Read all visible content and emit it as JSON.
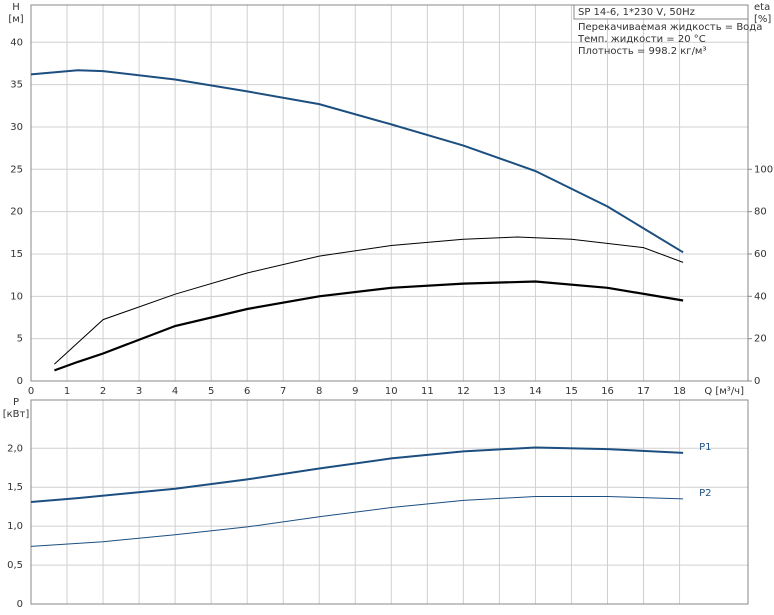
{
  "chart_data": [
    {
      "type": "line",
      "title": "SP 14-6, 1*230 V, 50Hz",
      "annotations": [
        "Перекачиваемая жидкость = Вода",
        "Темп. жидкости = 20 °C",
        "Плотность = 998.2 кг/м³"
      ],
      "ylabel": "H",
      "yunit": "[м]",
      "y2label": "eta",
      "y2unit": "[%]",
      "xlabel": "Q [м³/ч]",
      "xlim": [
        0,
        19.9
      ],
      "xticks": [
        0,
        1,
        2,
        3,
        4,
        5,
        6,
        7,
        8,
        9,
        10,
        11,
        12,
        13,
        14,
        15,
        16,
        17,
        18
      ],
      "ylim": [
        0,
        44.4
      ],
      "yticks": [
        0,
        5,
        10,
        15,
        20,
        25,
        30,
        35,
        40
      ],
      "y2lim": [
        0,
        177.6
      ],
      "y2ticks": [
        0,
        20,
        40,
        60,
        80,
        100
      ],
      "grid": true,
      "series": [
        {
          "color": "#1c4f80",
          "width": 2,
          "x": [
            0,
            1.3,
            2,
            4,
            6,
            8,
            10,
            12,
            14,
            16,
            18.1
          ],
          "values": [
            36.2,
            36.7,
            36.6,
            35.6,
            34.2,
            32.7,
            30.3,
            27.8,
            24.8,
            20.6,
            15.2
          ]
        },
        {
          "color": "#000000",
          "width": 1,
          "axis": "y2",
          "x": [
            0.65,
            2,
            4,
            6,
            8,
            10,
            12,
            13.5,
            15,
            17,
            18.1
          ],
          "values": [
            8,
            29,
            41,
            51,
            59,
            64,
            67,
            68,
            67,
            63,
            56
          ]
        },
        {
          "color": "#000000",
          "width": 2.2,
          "axis": "y2",
          "x": [
            0.65,
            1.3,
            2,
            4,
            6,
            8,
            10,
            12,
            14,
            16,
            18.1
          ],
          "values": [
            5,
            9,
            13,
            26,
            34,
            40,
            44,
            46,
            47,
            44,
            38
          ]
        }
      ]
    },
    {
      "type": "line",
      "ylabel": "P",
      "yunit": "[кВт]",
      "xlim": [
        0,
        19.9
      ],
      "xticks": [
        0,
        1,
        2,
        3,
        4,
        5,
        6,
        7,
        8,
        9,
        10,
        11,
        12,
        13,
        14,
        15,
        16,
        17,
        18
      ],
      "ylim": [
        0,
        2.62
      ],
      "yticks": [
        0,
        {
          "value": 0.5,
          "label": "0,5"
        },
        {
          "value": 1,
          "label": "1,0"
        },
        {
          "value": 1.5,
          "label": "1,5"
        },
        {
          "value": 2,
          "label": "2,0"
        }
      ],
      "grid": true,
      "series": [
        {
          "name": "P1",
          "color": "#1c4f80",
          "width": 2,
          "x": [
            0,
            1.3,
            4,
            6,
            8,
            10,
            12,
            14,
            16,
            18.1
          ],
          "values": [
            1.31,
            1.36,
            1.48,
            1.6,
            1.74,
            1.87,
            1.96,
            2.01,
            1.99,
            1.94
          ]
        },
        {
          "name": "P2",
          "color": "#1c4f80",
          "width": 1,
          "x": [
            0,
            2,
            4,
            6,
            8,
            10,
            12,
            14,
            16,
            18.1
          ],
          "values": [
            0.74,
            0.8,
            0.89,
            0.99,
            1.12,
            1.24,
            1.33,
            1.38,
            1.38,
            1.35
          ]
        }
      ]
    }
  ]
}
